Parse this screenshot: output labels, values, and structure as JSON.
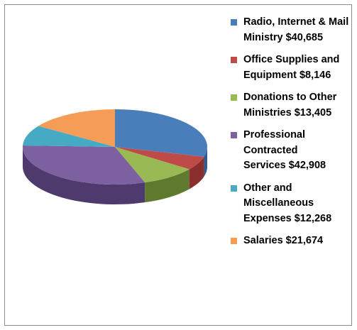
{
  "chart_data": {
    "type": "pie",
    "style": "3d",
    "legend_position": "right",
    "slices": [
      {
        "label": "Radio, Internet & Mail Ministry $40,685",
        "value": 40685,
        "color": "#4a7ebb",
        "side_color": "#2f5a8e"
      },
      {
        "label": "Office Supplies and Equipment $8,146",
        "value": 8146,
        "color": "#be4b48",
        "side_color": "#8b2f2d"
      },
      {
        "label": "Donations to Other Ministries $13,405",
        "value": 13405,
        "color": "#98b954",
        "side_color": "#5f7a2e"
      },
      {
        "label": "Professional Contracted Services $42,908",
        "value": 42908,
        "color": "#7d60a0",
        "side_color": "#4f3a6e"
      },
      {
        "label": "Other and Miscellaneous Expenses $12,268",
        "value": 12268,
        "color": "#46aac5",
        "side_color": "#2a7a90"
      },
      {
        "label": "Salaries $21,674",
        "value": 21674,
        "color": "#f59d56",
        "side_color": "#c06e2c"
      }
    ]
  }
}
